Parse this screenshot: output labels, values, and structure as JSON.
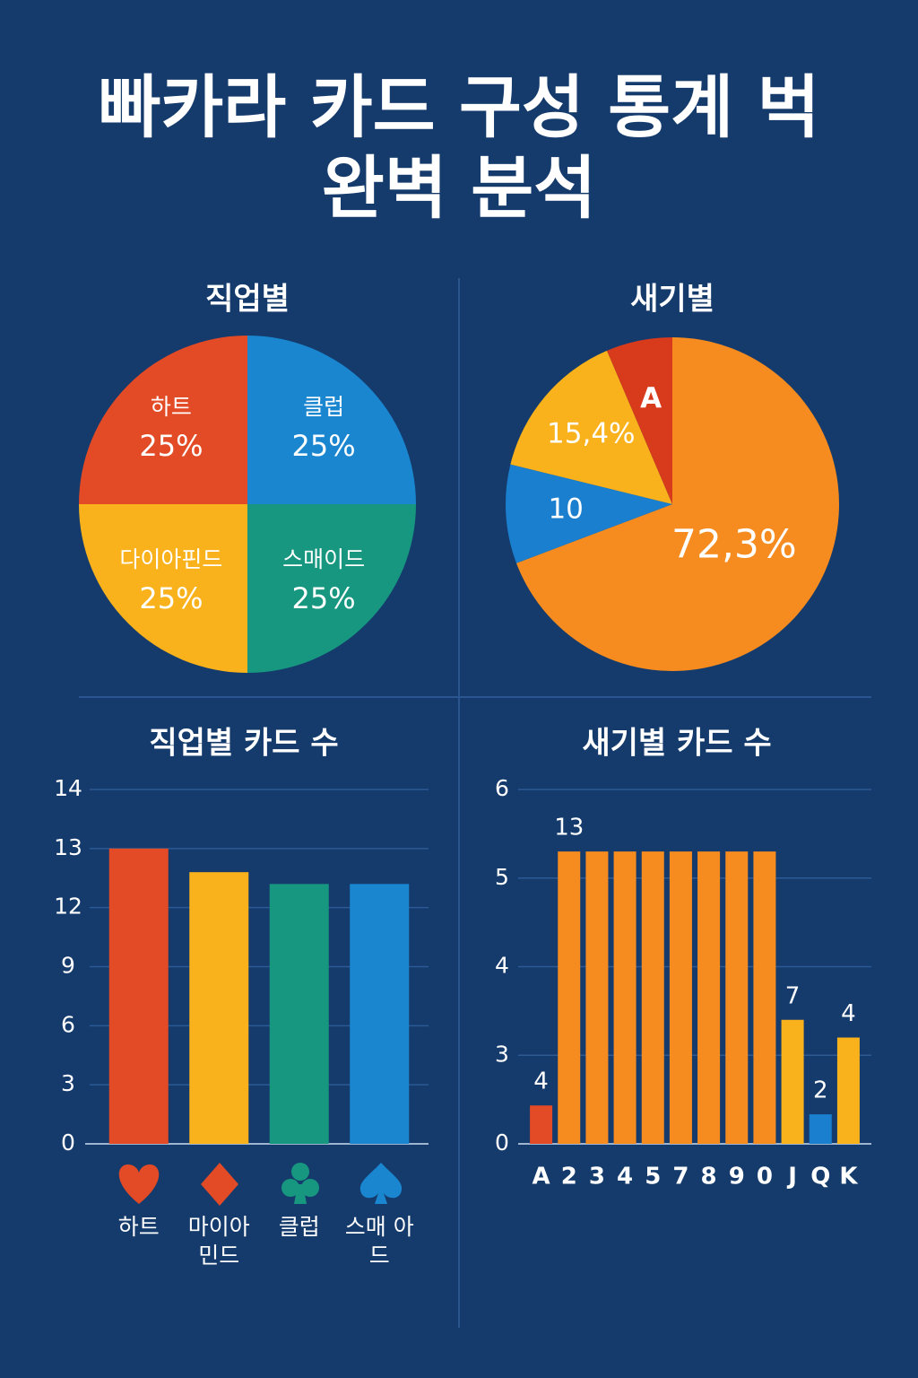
{
  "title": [
    "빠카라 카드 구성 통계 벅",
    "완벽 분석"
  ],
  "chart_data": [
    {
      "type": "pie",
      "title": "직업별",
      "categories": [
        "클럽",
        "스매이드",
        "다이아핀드",
        "하트"
      ],
      "values": [
        25,
        25,
        25,
        25
      ],
      "value_labels": [
        "25%",
        "25%",
        "25%",
        "25%"
      ],
      "colors": [
        "#1a86d0",
        "#17977f",
        "#f9b21b",
        "#e34a26"
      ]
    },
    {
      "type": "pie",
      "title": "새기별",
      "categories": [
        null,
        null,
        null,
        "A"
      ],
      "values": [
        72.3,
        10,
        15.4,
        6.7
      ],
      "value_labels": [
        "72,3%",
        "10",
        "15,4%",
        null
      ],
      "colors": [
        "#f68b1f",
        "#1a7fcf",
        "#f9b21b",
        "#d83a1c"
      ]
    },
    {
      "type": "bar",
      "title": "직업별 카드 수",
      "categories": [
        "하트",
        "마이아 민드",
        "클럽",
        "스매 아드"
      ],
      "values": [
        13,
        12.6,
        12.4,
        12.4
      ],
      "colors": [
        "#e34a26",
        "#f9b21b",
        "#17977f",
        "#1a86d0"
      ],
      "ylim": [
        0,
        14
      ],
      "yticks": [
        0,
        3,
        6,
        9,
        12,
        13,
        14
      ],
      "grid": true
    },
    {
      "type": "bar",
      "title": "새기별 카드 수",
      "categories": [
        "A",
        "2",
        "3",
        "4",
        "5",
        "7",
        "8",
        "9",
        "0",
        "J",
        "Q",
        "K"
      ],
      "values": [
        1.3,
        5.3,
        5.3,
        5.3,
        5.3,
        5.3,
        5.3,
        5.3,
        5.3,
        3.4,
        1.0,
        3.2
      ],
      "colors": [
        "#e34a26",
        "#f68b1f",
        "#f68b1f",
        "#f68b1f",
        "#f68b1f",
        "#f68b1f",
        "#f68b1f",
        "#f68b1f",
        "#f68b1f",
        "#f9b21b",
        "#1a7fcf",
        "#f9b21b"
      ],
      "ylim": [
        0,
        6
      ],
      "yticks": [
        0,
        3,
        4,
        5,
        6
      ],
      "grid": true,
      "annotations": [
        {
          "text": "4",
          "category": "A"
        },
        {
          "text": "13",
          "category": "2"
        },
        {
          "text": "7",
          "category": "J"
        },
        {
          "text": "2",
          "category": "Q"
        },
        {
          "text": "4",
          "category": "K"
        }
      ]
    }
  ]
}
